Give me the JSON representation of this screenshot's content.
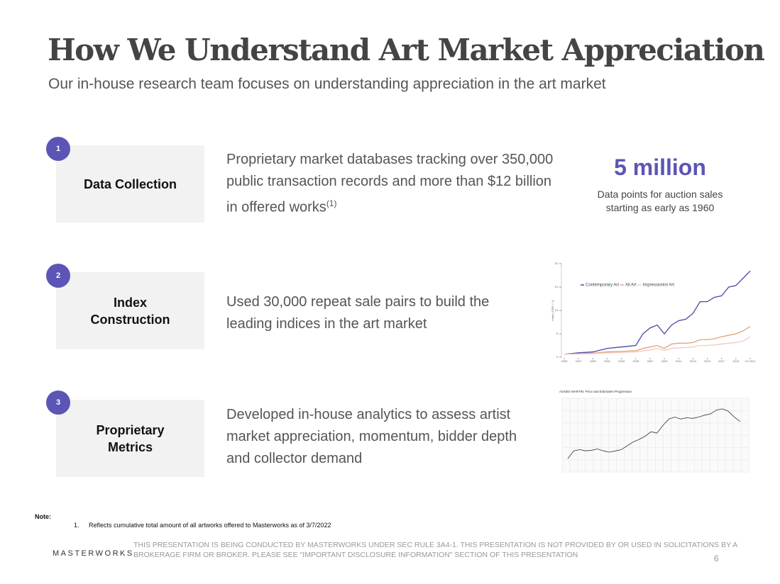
{
  "header": {
    "title": "How We Understand Art Market Appreciation",
    "subtitle": "Our in-house research team focuses on understanding appreciation in the art market"
  },
  "rows": [
    {
      "number": "1",
      "label": "Data Collection",
      "description": "Proprietary market databases tracking over 350,000 public transaction records and more than $12 billion in offered works",
      "footnote_ref": "(1)"
    },
    {
      "number": "2",
      "label": "Index Construction",
      "description": "Used 30,000 repeat sale pairs to build the leading indices in the art market"
    },
    {
      "number": "3",
      "label": "Proprietary Metrics",
      "description": "Developed in-house analytics to assess artist market appreciation, momentum, bidder depth and collector demand"
    }
  ],
  "highlight": {
    "value": "5 million",
    "caption": "Data points for auction sales starting as early as 1960"
  },
  "index_chart": {
    "type": "line",
    "y_label": "Index (1995 = 1)",
    "x": [
      1995,
      1997,
      1999,
      2001,
      2003,
      2005,
      2006,
      2007,
      2008,
      2009,
      2010,
      2011,
      2012,
      2013,
      2014,
      2015,
      2016,
      2017,
      2018,
      2019,
      2020,
      2021
    ],
    "series": [
      {
        "name": "Contemporary Art",
        "color": "#4b46a8",
        "values": [
          1,
          1.5,
          1.8,
          3,
          3.5,
          4,
          8,
          10,
          11,
          8,
          11,
          12.5,
          13,
          15,
          19,
          19,
          20.5,
          21,
          24,
          24.5,
          27,
          29.5
        ]
      },
      {
        "name": "All Art",
        "color": "#e0a27a",
        "values": [
          1,
          1.2,
          1.4,
          1.8,
          2,
          2.2,
          3,
          3.5,
          4,
          3,
          4.5,
          4.8,
          4.8,
          5,
          6,
          6,
          6.3,
          7,
          7.5,
          8,
          9,
          10.5
        ]
      },
      {
        "name": "Impressionist Art",
        "color": "#f2c9c0",
        "values": [
          1,
          1.1,
          1.2,
          1.5,
          1.6,
          1.8,
          2.2,
          2.5,
          3,
          2.3,
          3,
          3.2,
          3.3,
          3.5,
          4,
          4,
          4.2,
          4.5,
          4.8,
          5,
          5.5,
          7
        ]
      }
    ],
    "xlim": [
      1995,
      2021
    ],
    "ylim": [
      0,
      32
    ],
    "yticks": [
      0,
      8,
      16,
      24,
      32
    ],
    "xticks": [
      1995,
      1997,
      1999,
      2001,
      2003,
      2005,
      2007,
      2009,
      2011,
      2013,
      2015,
      2017,
      2019,
      {
        "value": 2021,
        "label": "1H 2021"
      }
    ]
  },
  "artist_chart": {
    "type": "line",
    "title": "AGNES MARTIN: Price and Estimates Progression",
    "color": "#333333",
    "values": [
      10,
      22,
      24,
      22,
      23,
      25,
      22,
      20,
      22,
      24,
      30,
      36,
      40,
      45,
      52,
      50,
      62,
      72,
      75,
      72,
      74,
      73,
      75,
      78,
      80,
      86,
      88,
      84,
      75,
      68
    ],
    "ylim": [
      0,
      100
    ]
  },
  "note": {
    "label": "Note:",
    "items": [
      {
        "number": "1.",
        "text": "Reflects cumulative total amount of all artworks offered to Masterworks as of 3/7/2022"
      }
    ]
  },
  "footer": {
    "logo": "MASTERWORKS",
    "disclaimer": "THIS PRESENTATION  IS BEING CONDUCTED BY MASTERWORKS UNDER SEC RULE 3A4-1. THIS PRESENTATION  IS NOT PROVIDED BY OR USED IN SOLICITATIONS BY A BROKERAGE FIRM OR BROKER. PLEASE SEE \"IMPORTANT DISCLOSURE INFORMATION\" SECTION OF THIS PRESENTATION",
    "page": "6"
  }
}
